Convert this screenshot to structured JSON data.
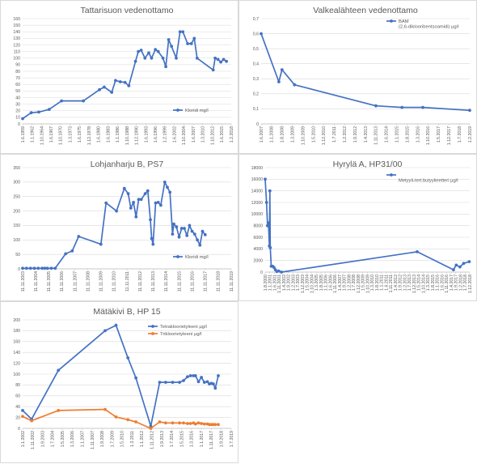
{
  "chart_data": [
    {
      "id": "c1",
      "type": "line",
      "title": "Tattarisuon vedenottamo",
      "ylim": [
        0,
        160
      ],
      "yticks": [
        0,
        10,
        20,
        30,
        40,
        50,
        60,
        70,
        80,
        90,
        100,
        110,
        120,
        130,
        140,
        150,
        160
      ],
      "xticks": [
        "1.6.1959",
        "1.1.1962",
        "1.10.1964",
        "1.6.1967",
        "1.10.1970",
        "1.3.1973",
        "1.6.1975",
        "1.12.1978",
        "1.6.1980",
        "1.6.1983",
        "1.1.1986",
        "1.10.1988",
        "1.12.1990",
        "1.6.1993",
        "1.6.1996",
        "1.2.1999",
        "1.6.2002",
        "1.10.2004",
        "1.6.2007",
        "1.3.2010",
        "1.10.2012",
        "1.6.2015",
        "1.2.2018"
      ],
      "legend": "top-right",
      "series": [
        {
          "name": "Kloridi mg/l",
          "color": "#4472c4",
          "points": [
            [
              0,
              8
            ],
            [
              0.9,
              17
            ],
            [
              1.7,
              18
            ],
            [
              2.8,
              22
            ],
            [
              4.1,
              35
            ],
            [
              6.4,
              35
            ],
            [
              8.1,
              52
            ],
            [
              8.6,
              56
            ],
            [
              9.4,
              48
            ],
            [
              9.8,
              66
            ],
            [
              10.3,
              64
            ],
            [
              10.8,
              63
            ],
            [
              11.2,
              58
            ],
            [
              11.9,
              95
            ],
            [
              12.2,
              110
            ],
            [
              12.5,
              112
            ],
            [
              12.9,
              100
            ],
            [
              13.3,
              108
            ],
            [
              13.6,
              100
            ],
            [
              14.0,
              113
            ],
            [
              14.3,
              110
            ],
            [
              14.8,
              100
            ],
            [
              15.1,
              87
            ],
            [
              15.4,
              128
            ],
            [
              15.7,
              118
            ],
            [
              16.2,
              100
            ],
            [
              16.6,
              140
            ],
            [
              16.9,
              140
            ],
            [
              17.4,
              122
            ],
            [
              17.8,
              122
            ],
            [
              18.1,
              130
            ],
            [
              18.4,
              100
            ],
            [
              20.1,
              82
            ],
            [
              20.3,
              100
            ],
            [
              20.6,
              98
            ],
            [
              20.9,
              94
            ],
            [
              21.2,
              98
            ],
            [
              21.5,
              95
            ]
          ]
        }
      ]
    },
    {
      "id": "c2",
      "type": "line",
      "title": "Valkealähteen vedenottamo",
      "ylim": [
        0,
        0.7
      ],
      "yticks": [
        0,
        0.1,
        0.2,
        0.3,
        0.4,
        0.5,
        0.6,
        0.7
      ],
      "ytick_labels": [
        "0",
        "0,1",
        "0,2",
        "0,3",
        "0,4",
        "0,5",
        "0,6",
        "0,7"
      ],
      "xticks": [
        "1.6.2007",
        "1.1.2008",
        "1.8.2008",
        "1.3.2009",
        "1.10.2009",
        "1.5.2010",
        "1.12.2010",
        "1.7.2011",
        "1.2.2012",
        "1.9.2012",
        "1.4.2013",
        "1.11.2013",
        "1.6.2014",
        "1.1.2015",
        "1.8.2015",
        "1.3.2016",
        "1.10.2016",
        "1.5.2017",
        "1.12.2017",
        "1.7.2018",
        "1.2.2019"
      ],
      "legend": "top-right",
      "series": [
        {
          "name": "BAM (2,6-diklooribentsoamidi) µg/l",
          "color": "#4472c4",
          "points": [
            [
              0,
              0.6
            ],
            [
              1.7,
              0.28
            ],
            [
              2.0,
              0.36
            ],
            [
              3.2,
              0.26
            ],
            [
              11.0,
              0.12
            ],
            [
              13.5,
              0.11
            ],
            [
              15.5,
              0.11
            ],
            [
              20.0,
              0.09
            ]
          ]
        }
      ]
    },
    {
      "id": "c3",
      "type": "line",
      "title": "Lohjanharju B, PS7",
      "ylim": [
        0,
        350
      ],
      "yticks": [
        0,
        50,
        100,
        150,
        200,
        250,
        300,
        350
      ],
      "xticks": [
        "11.11.2003",
        "11.11.2004",
        "11.11.2005",
        "11.11.2006",
        "11.11.2007",
        "11.11.2008",
        "11.11.2009",
        "11.11.2010",
        "11.11.2011",
        "11.11.2012",
        "11.11.2013",
        "11.11.2014",
        "11.11.2015",
        "11.11.2016",
        "11.11.2017",
        "11.11.2018",
        "11.11.2019"
      ],
      "legend": "bottom-right",
      "series": [
        {
          "name": "Kloridi mg/l",
          "color": "#4472c4",
          "points": [
            [
              0,
              2
            ],
            [
              0.3,
              2
            ],
            [
              0.6,
              2
            ],
            [
              0.9,
              2
            ],
            [
              1.2,
              2
            ],
            [
              1.5,
              2
            ],
            [
              1.7,
              2
            ],
            [
              1.9,
              2
            ],
            [
              2.2,
              2
            ],
            [
              2.5,
              2
            ],
            [
              3.3,
              52
            ],
            [
              3.8,
              62
            ],
            [
              4.3,
              112
            ],
            [
              6.0,
              85
            ],
            [
              6.4,
              228
            ],
            [
              7.2,
              200
            ],
            [
              7.8,
              278
            ],
            [
              8.1,
              260
            ],
            [
              8.3,
              210
            ],
            [
              8.5,
              230
            ],
            [
              8.7,
              180
            ],
            [
              8.9,
              240
            ],
            [
              9.1,
              240
            ],
            [
              9.4,
              260
            ],
            [
              9.6,
              270
            ],
            [
              9.8,
              170
            ],
            [
              9.9,
              105
            ],
            [
              10.0,
              85
            ],
            [
              10.2,
              228
            ],
            [
              10.4,
              230
            ],
            [
              10.6,
              220
            ],
            [
              10.9,
              300
            ],
            [
              11.1,
              282
            ],
            [
              11.3,
              265
            ],
            [
              11.5,
              120
            ],
            [
              11.6,
              155
            ],
            [
              11.8,
              145
            ],
            [
              12.0,
              110
            ],
            [
              12.2,
              140
            ],
            [
              12.4,
              140
            ],
            [
              12.6,
              115
            ],
            [
              12.8,
              150
            ],
            [
              13.0,
              130
            ],
            [
              13.2,
              120
            ],
            [
              13.4,
              100
            ],
            [
              13.6,
              82
            ],
            [
              13.8,
              130
            ],
            [
              14.0,
              118
            ]
          ]
        }
      ]
    },
    {
      "id": "c4",
      "type": "line",
      "title": "Hyrylä A, HP31/00",
      "ylim": [
        0,
        18000
      ],
      "yticks": [
        0,
        2000,
        4000,
        6000,
        8000,
        10000,
        12000,
        14000,
        16000,
        18000
      ],
      "xticks": [
        "1.8.2000",
        "1.1.2001",
        "1.6.2001",
        "1.11.2001",
        "1.4.2002",
        "1.9.2002",
        "1.2.2003",
        "1.7.2003",
        "1.12.2003",
        "1.5.2004",
        "1.10.2004",
        "1.3.2005",
        "1.8.2005",
        "1.1.2006",
        "1.6.2006",
        "1.11.2006",
        "1.4.2007",
        "1.9.2007",
        "1.2.2008",
        "1.7.2008",
        "1.12.2008",
        "1.5.2009",
        "1.10.2009",
        "1.3.2010",
        "1.8.2010",
        "1.1.2011",
        "1.6.2011",
        "1.11.2011",
        "1.4.2012",
        "1.9.2012",
        "1.2.2013",
        "1.7.2013",
        "1.12.2013",
        "1.5.2014",
        "1.10.2014",
        "1.3.2015",
        "1.8.2015",
        "1.1.2016",
        "1.6.2016",
        "1.11.2016",
        "1.4.2017",
        "1.9.2017",
        "1.2.2018",
        "1.7.2018",
        "1.12.2018"
      ],
      "legend": "top-right",
      "series": [
        {
          "name": "Metyyli-tert.butyylieetteri µg/l",
          "color": "#4472c4",
          "points": [
            [
              0,
              16000
            ],
            [
              0.3,
              12000
            ],
            [
              0.5,
              8000
            ],
            [
              0.7,
              8500
            ],
            [
              0.9,
              4500
            ],
            [
              1.0,
              14000
            ],
            [
              1.1,
              4200
            ],
            [
              1.3,
              1000
            ],
            [
              1.6,
              1000
            ],
            [
              1.9,
              800
            ],
            [
              2.2,
              400
            ],
            [
              2.5,
              100
            ],
            [
              2.9,
              200
            ],
            [
              3.5,
              0
            ],
            [
              32.7,
              3500
            ],
            [
              40.5,
              400
            ],
            [
              41.1,
              1200
            ],
            [
              41.9,
              900
            ],
            [
              42.7,
              1500
            ],
            [
              43.9,
              1800
            ]
          ]
        }
      ]
    },
    {
      "id": "c5",
      "type": "line",
      "title": "Mätäkivi B, HP 15",
      "ylim": [
        0,
        200
      ],
      "yticks": [
        0,
        20,
        40,
        60,
        80,
        100,
        120,
        140,
        160,
        180,
        200
      ],
      "xticks": [
        "1.1.2002",
        "1.11.2002",
        "1.9.2003",
        "1.7.2004",
        "1.5.2005",
        "1.3.2006",
        "1.1.2007",
        "1.11.2007",
        "1.9.2008",
        "1.7.2009",
        "1.5.2010",
        "1.3.2011",
        "1.1.2012",
        "1.11.2012",
        "1.9.2013",
        "1.7.2014",
        "1.5.2015",
        "1.3.2016",
        "1.1.2017",
        "1.11.2017",
        "1.9.2018",
        "1.7.2019"
      ],
      "legend": "top-right",
      "series": [
        {
          "name": "Tetrakloorietyleeni µg/l",
          "color": "#4472c4",
          "points": [
            [
              0,
              33
            ],
            [
              0.9,
              17
            ],
            [
              3.6,
              107
            ],
            [
              8.3,
              180
            ],
            [
              9.4,
              190
            ],
            [
              10.6,
              130
            ],
            [
              11.4,
              93
            ],
            [
              12.9,
              4
            ],
            [
              13.8,
              85
            ],
            [
              14.4,
              85
            ],
            [
              15.1,
              85
            ],
            [
              15.8,
              85
            ],
            [
              16.2,
              88
            ],
            [
              16.6,
              95
            ],
            [
              16.9,
              97
            ],
            [
              17.2,
              97
            ],
            [
              17.4,
              97
            ],
            [
              17.7,
              86
            ],
            [
              18.0,
              94
            ],
            [
              18.3,
              85
            ],
            [
              18.6,
              86
            ],
            [
              18.8,
              82
            ],
            [
              19.0,
              83
            ],
            [
              19.2,
              82
            ],
            [
              19.4,
              74
            ],
            [
              19.7,
              97
            ]
          ]
        },
        {
          "name": "Trikloorietyleeni µg/l",
          "color": "#ed7d31",
          "points": [
            [
              0,
              22
            ],
            [
              0.9,
              14
            ],
            [
              3.6,
              33
            ],
            [
              8.3,
              35
            ],
            [
              9.4,
              21
            ],
            [
              10.6,
              16
            ],
            [
              11.4,
              12
            ],
            [
              12.9,
              0
            ],
            [
              13.8,
              12
            ],
            [
              14.4,
              10
            ],
            [
              15.1,
              10
            ],
            [
              15.8,
              10
            ],
            [
              16.2,
              10
            ],
            [
              16.6,
              9
            ],
            [
              16.9,
              9
            ],
            [
              17.2,
              10
            ],
            [
              17.4,
              8
            ],
            [
              17.7,
              10
            ],
            [
              18.0,
              9
            ],
            [
              18.3,
              8
            ],
            [
              18.6,
              8
            ],
            [
              18.8,
              7
            ],
            [
              19.0,
              7
            ],
            [
              19.2,
              7
            ],
            [
              19.4,
              7
            ],
            [
              19.7,
              7
            ]
          ]
        }
      ]
    }
  ]
}
